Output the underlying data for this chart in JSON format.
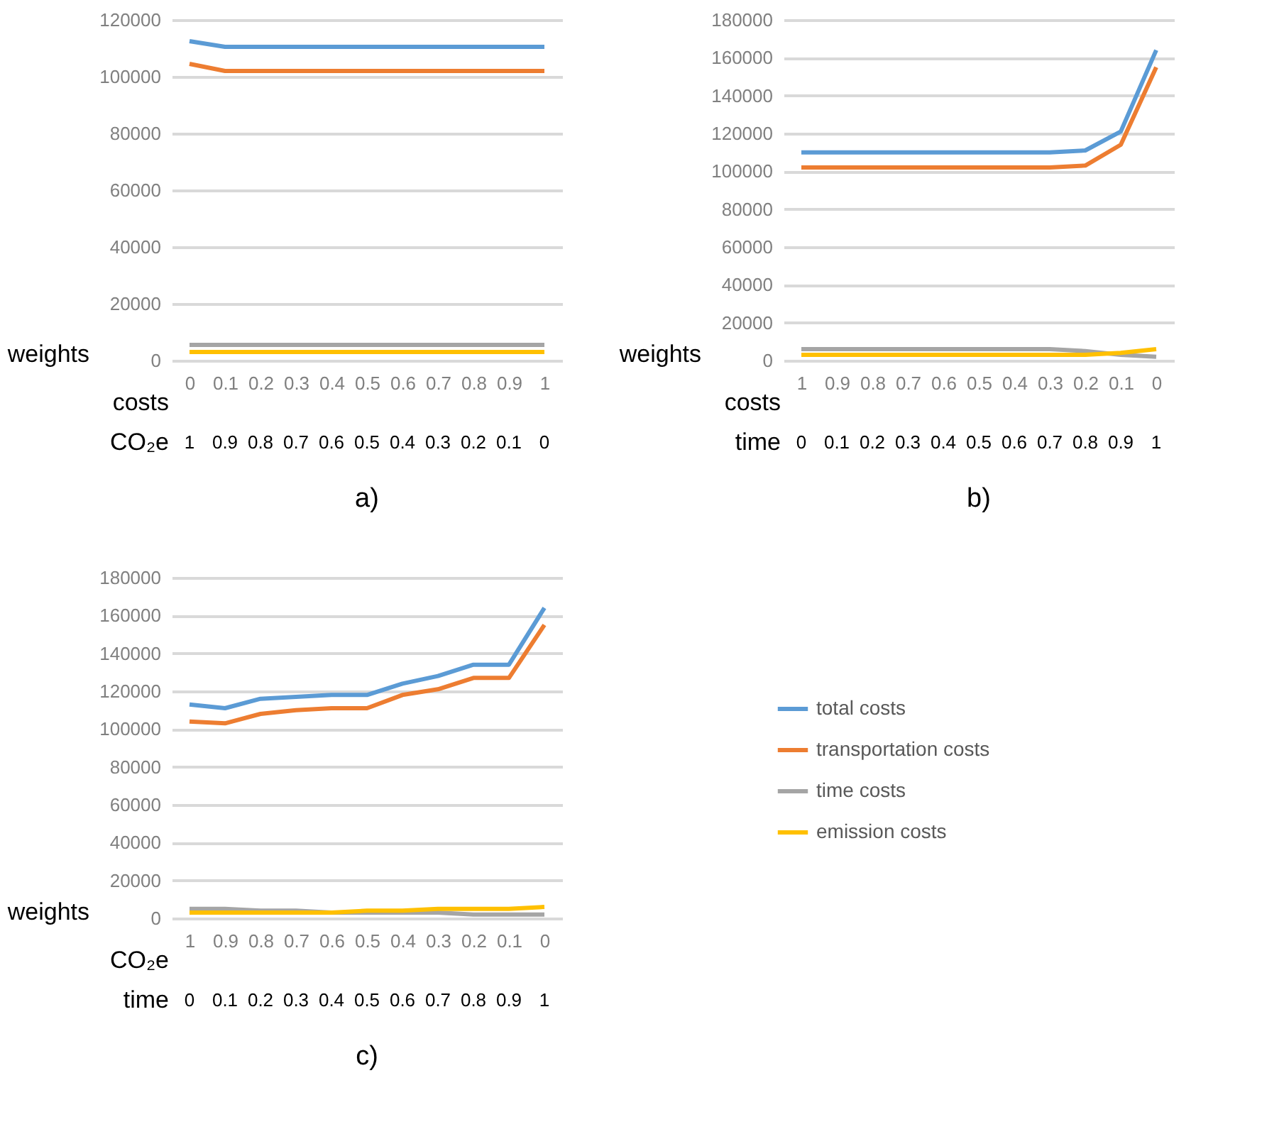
{
  "chart_data": [
    {
      "type": "line",
      "title": "a)",
      "xlabel": "costs",
      "categories": [
        "0",
        "0.1",
        "0.2",
        "0.3",
        "0.4",
        "0.5",
        "0.6",
        "0.7",
        "0.8",
        "0.9",
        "1"
      ],
      "series": [
        {
          "color": "#5b9bd5",
          "values": [
            112500,
            110500,
            110500,
            110500,
            110500,
            110500,
            110500,
            110500,
            110500,
            110500,
            110500
          ]
        },
        {
          "color": "#ed7d31",
          "values": [
            104500,
            102000,
            102000,
            102000,
            102000,
            102000,
            102000,
            102000,
            102000,
            102000,
            102000
          ]
        },
        {
          "color": "#a5a5a5",
          "values": [
            5500,
            5500,
            5500,
            5500,
            5500,
            5500,
            5500,
            5500,
            5500,
            5500,
            5500
          ]
        },
        {
          "color": "#ffc000",
          "values": [
            3000,
            3000,
            3000,
            3000,
            3000,
            3000,
            3000,
            3000,
            3000,
            3000,
            3000
          ]
        }
      ],
      "ylim": [
        0,
        120000
      ],
      "yticks": [
        0,
        20000,
        40000,
        60000,
        80000,
        100000,
        120000
      ],
      "grid": "y",
      "legend": false,
      "annotations": [
        "weights",
        "CO₂e",
        "1",
        "0.9",
        "0.8",
        "0.7",
        "0.6",
        "0.5",
        "0.4",
        "0.3",
        "0.2",
        "0.1",
        "0"
      ]
    },
    {
      "type": "line",
      "title": "b)",
      "xlabel": "costs",
      "categories": [
        "1",
        "0.9",
        "0.8",
        "0.7",
        "0.6",
        "0.5",
        "0.4",
        "0.3",
        "0.2",
        "0.1",
        "0"
      ],
      "series": [
        {
          "color": "#5b9bd5",
          "values": [
            110000,
            110000,
            110000,
            110000,
            110000,
            110000,
            110000,
            110000,
            111000,
            121000,
            164000
          ]
        },
        {
          "color": "#ed7d31",
          "values": [
            102000,
            102000,
            102000,
            102000,
            102000,
            102000,
            102000,
            102000,
            103000,
            114000,
            155000
          ]
        },
        {
          "color": "#a5a5a5",
          "values": [
            6000,
            6000,
            6000,
            6000,
            6000,
            6000,
            6000,
            6000,
            5000,
            3000,
            2000
          ]
        },
        {
          "color": "#ffc000",
          "values": [
            3000,
            3000,
            3000,
            3000,
            3000,
            3000,
            3000,
            3000,
            3000,
            4000,
            6000
          ]
        }
      ],
      "ylim": [
        0,
        180000
      ],
      "yticks": [
        0,
        20000,
        40000,
        60000,
        80000,
        100000,
        120000,
        140000,
        160000,
        180000
      ],
      "grid": "y",
      "legend": false,
      "annotations": [
        "weights",
        "time",
        "0",
        "0.1",
        "0.2",
        "0.3",
        "0.4",
        "0.5",
        "0.6",
        "0.7",
        "0.8",
        "0.9",
        "1"
      ]
    },
    {
      "type": "line",
      "title": "c)",
      "xlabel": "CO₂e",
      "categories": [
        "1",
        "0.9",
        "0.8",
        "0.7",
        "0.6",
        "0.5",
        "0.4",
        "0.3",
        "0.2",
        "0.1",
        "0"
      ],
      "series": [
        {
          "name": "total costs",
          "color": "#5b9bd5",
          "values": [
            113000,
            111000,
            116000,
            117000,
            118000,
            118000,
            124000,
            128000,
            134000,
            134000,
            164000
          ]
        },
        {
          "name": "transportation costs",
          "color": "#ed7d31",
          "values": [
            104000,
            103000,
            108000,
            110000,
            111000,
            111000,
            118000,
            121000,
            127000,
            127000,
            155000
          ]
        },
        {
          "name": "time costs",
          "color": "#a5a5a5",
          "values": [
            5000,
            5000,
            4000,
            4000,
            3000,
            3000,
            3000,
            3000,
            2000,
            2000,
            2000
          ]
        },
        {
          "name": "emission costs",
          "color": "#ffc000",
          "values": [
            3000,
            3000,
            3000,
            3000,
            3000,
            4000,
            4000,
            5000,
            5000,
            5000,
            6000
          ]
        }
      ],
      "ylim": [
        0,
        180000
      ],
      "yticks": [
        0,
        20000,
        40000,
        60000,
        80000,
        100000,
        120000,
        140000,
        160000,
        180000
      ],
      "grid": "y",
      "legend": "right",
      "annotations": [
        "weights",
        "time",
        "0",
        "0.1",
        "0.2",
        "0.3",
        "0.4",
        "0.5",
        "0.6",
        "0.7",
        "0.8",
        "0.9",
        "1"
      ]
    }
  ]
}
